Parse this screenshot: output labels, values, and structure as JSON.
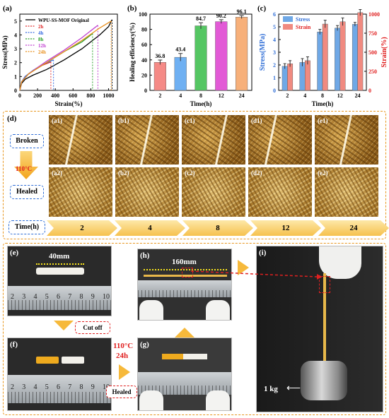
{
  "panel_labels": {
    "a": "(a)",
    "b": "(b)",
    "c": "(c)",
    "d": "(d)",
    "e": "(e)",
    "f": "(f)",
    "g": "(g)",
    "h": "(h)",
    "i": "(i)"
  },
  "chart_data": [
    {
      "type": "line",
      "panel": "a",
      "xlabel": "Strain(%)",
      "ylabel": "Stress(MPa)",
      "xlim": [
        0,
        1100
      ],
      "ylim": [
        0,
        5.5
      ],
      "xticks": [
        0,
        200,
        400,
        600,
        800,
        1000
      ],
      "yticks": [
        0,
        1,
        2,
        3,
        4,
        5
      ],
      "series": [
        {
          "name": "WPU-SS-MOF Original",
          "color": "#000000",
          "x": [
            0,
            20,
            60,
            150,
            300,
            500,
            700,
            900,
            1000,
            1040
          ],
          "y": [
            0,
            0.5,
            0.8,
            1.1,
            1.5,
            2.2,
            3.0,
            4.0,
            4.6,
            5.1
          ]
        },
        {
          "name": "2h",
          "color": "#e03030",
          "x": [
            0,
            20,
            60,
            150,
            250,
            350
          ],
          "y": [
            0,
            0.6,
            1.0,
            1.4,
            1.8,
            2.05
          ]
        },
        {
          "name": "4h",
          "color": "#3a6ee0",
          "x": [
            0,
            20,
            60,
            150,
            250,
            380
          ],
          "y": [
            0,
            0.6,
            1.0,
            1.45,
            1.85,
            2.2
          ]
        },
        {
          "name": "8h",
          "color": "#2aa02a",
          "x": [
            0,
            20,
            100,
            300,
            500,
            700,
            820
          ],
          "y": [
            0,
            0.6,
            1.2,
            2.0,
            2.8,
            3.5,
            4.1
          ]
        },
        {
          "name": "12h",
          "color": "#c040d0",
          "x": [
            0,
            20,
            100,
            300,
            500,
            700,
            880
          ],
          "y": [
            0,
            0.6,
            1.2,
            2.1,
            2.9,
            3.8,
            4.7
          ]
        },
        {
          "name": "24h",
          "color": "#e8901e",
          "x": [
            0,
            20,
            100,
            300,
            500,
            700,
            900,
            1030
          ],
          "y": [
            0,
            0.6,
            1.2,
            2.0,
            2.8,
            3.6,
            4.5,
            5.0
          ]
        }
      ]
    },
    {
      "type": "bar",
      "panel": "b",
      "xlabel": "Time(h)",
      "ylabel": "Healing efficiency(%)",
      "ylim": [
        0,
        100
      ],
      "yticks": [
        0,
        20,
        40,
        60,
        80,
        100
      ],
      "categories": [
        "2",
        "4",
        "8",
        "12",
        "24"
      ],
      "values": [
        36.8,
        43.4,
        84.7,
        90.2,
        96.1
      ],
      "errors": [
        3,
        5,
        4,
        2.5,
        2
      ],
      "colors": [
        "#f58a86",
        "#6fb0f2",
        "#55c663",
        "#e25ad6",
        "#f7b07a"
      ],
      "value_labels": [
        "36.8",
        "43.4",
        "84.7",
        "90.2",
        "96.1"
      ]
    },
    {
      "type": "bar",
      "panel": "c",
      "xlabel": "Time(h)",
      "ylabel": "Stress(MPa)",
      "ylabel2": "Strain(%)",
      "ylim": [
        0,
        6
      ],
      "ylim2": [
        0,
        1000
      ],
      "yticks": [
        0,
        1,
        2,
        3,
        4,
        5,
        6
      ],
      "yticks2": [
        0,
        250,
        500,
        750,
        1000
      ],
      "categories": [
        "2",
        "4",
        "8",
        "12",
        "24"
      ],
      "series": [
        {
          "name": "Stress",
          "color": "#6fa8e6",
          "axis": "left",
          "values": [
            1.9,
            2.2,
            4.6,
            4.9,
            5.2
          ],
          "errors": [
            0.2,
            0.3,
            0.2,
            0.2,
            0.15
          ]
        },
        {
          "name": "Strain",
          "color": "#f08a80",
          "axis": "right",
          "values": [
            350,
            390,
            870,
            900,
            1020
          ],
          "errors": [
            40,
            50,
            50,
            50,
            40
          ]
        }
      ]
    }
  ],
  "panel_d": {
    "row_broken": "Broken",
    "temp": "110°C",
    "row_healed": "Healed",
    "time_label": "Time(h)",
    "top_tags": [
      "(a1)",
      "(b1)",
      "(c1)",
      "(d1)",
      "(e1)"
    ],
    "bottom_tags": [
      "(a2)",
      "(b2)",
      "(c2)",
      "(d2)",
      "(e2)"
    ],
    "times": [
      "2",
      "4",
      "8",
      "12",
      "24"
    ]
  },
  "panel_bottom": {
    "length_e": "40mm",
    "cut": "Cut off",
    "cond_temp": "110°C",
    "cond_time": "24h",
    "healed": "Healed",
    "length_h": "160mm",
    "weight": "1 kg",
    "ruler_nums": [
      "2",
      "3",
      "4",
      "5",
      "6",
      "7",
      "8",
      "9",
      "10"
    ]
  }
}
